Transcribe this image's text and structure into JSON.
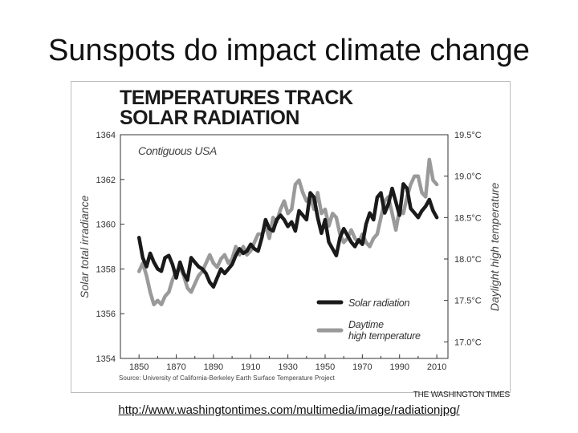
{
  "slide": {
    "title": "Sunspots do impact climate change",
    "url": "http://www.washingtontimes.com/multimedia/image/radiationjpg/",
    "credit": "THE WASHINGTON TIMES"
  },
  "chart_data": {
    "type": "line",
    "title_lines": [
      "TEMPERATURES TRACK",
      "SOLAR RADIATION"
    ],
    "region_label": "Contiguous USA",
    "source": "Source: University of California-Berkeley Earth Surface Temperature Project",
    "ylabel": "Solar total irradiance",
    "y2label": "Daylight high temperature",
    "xlim": [
      1840,
      2016
    ],
    "ylim": [
      1354,
      1364
    ],
    "y2lim": [
      16.8,
      19.5
    ],
    "x_ticks": [
      1850,
      1870,
      1890,
      1910,
      1930,
      1950,
      1970,
      1990,
      2010
    ],
    "y_ticks": [
      1364,
      1362,
      1360,
      1358,
      1356,
      1354
    ],
    "y2_ticks": [
      {
        "value": 19.5,
        "label": "19.5°C"
      },
      {
        "value": 19.0,
        "label": "19.0°C"
      },
      {
        "value": 18.5,
        "label": "18.5°C"
      },
      {
        "value": 18.0,
        "label": "18.0°C"
      },
      {
        "value": 17.5,
        "label": "17.5°C"
      },
      {
        "value": 17.0,
        "label": "17.0°C"
      }
    ],
    "legend": [
      "Solar radiation",
      "Daytime high temperature"
    ],
    "colors": {
      "solar": "#1a1a1a",
      "temperature": "#9a9a9a"
    },
    "series": [
      {
        "name": "Solar radiation",
        "axis": "left",
        "x": [
          1850,
          1852,
          1854,
          1856,
          1858,
          1860,
          1862,
          1864,
          1866,
          1868,
          1870,
          1872,
          1874,
          1876,
          1878,
          1880,
          1882,
          1884,
          1886,
          1888,
          1890,
          1892,
          1894,
          1896,
          1898,
          1900,
          1902,
          1904,
          1906,
          1908,
          1910,
          1912,
          1914,
          1916,
          1918,
          1920,
          1922,
          1924,
          1926,
          1928,
          1930,
          1932,
          1934,
          1936,
          1938,
          1940,
          1942,
          1944,
          1946,
          1948,
          1950,
          1952,
          1954,
          1956,
          1958,
          1960,
          1962,
          1964,
          1966,
          1968,
          1970,
          1972,
          1974,
          1976,
          1978,
          1980,
          1982,
          1984,
          1986,
          1988,
          1990,
          1992,
          1994,
          1996,
          1998,
          2000,
          2002,
          2004,
          2006,
          2008,
          2010
        ],
        "values": [
          1359.4,
          1358.5,
          1358.1,
          1358.7,
          1358.3,
          1358.0,
          1357.9,
          1358.5,
          1358.6,
          1358.2,
          1357.6,
          1358.3,
          1357.8,
          1357.5,
          1358.5,
          1358.3,
          1358.1,
          1358.0,
          1357.8,
          1357.4,
          1357.2,
          1357.6,
          1358.0,
          1357.8,
          1358.0,
          1358.2,
          1358.6,
          1358.9,
          1358.7,
          1358.8,
          1359.1,
          1358.9,
          1358.8,
          1359.4,
          1360.2,
          1359.8,
          1359.7,
          1360.2,
          1360.4,
          1360.2,
          1359.9,
          1360.1,
          1359.7,
          1360.6,
          1360.4,
          1360.2,
          1361.4,
          1361.2,
          1360.3,
          1359.6,
          1360.2,
          1359.2,
          1358.9,
          1358.6,
          1359.4,
          1359.8,
          1359.5,
          1359.2,
          1359.0,
          1359.3,
          1359.1,
          1360.0,
          1360.5,
          1360.2,
          1361.2,
          1361.4,
          1360.5,
          1360.9,
          1361.6,
          1361.0,
          1360.4,
          1361.8,
          1361.6,
          1360.7,
          1360.5,
          1360.3,
          1360.6,
          1360.8,
          1361.1,
          1360.6,
          1360.3
        ]
      },
      {
        "name": "Daytime high temperature",
        "axis": "right",
        "x": [
          1850,
          1852,
          1854,
          1856,
          1858,
          1860,
          1862,
          1864,
          1866,
          1868,
          1870,
          1872,
          1874,
          1876,
          1878,
          1880,
          1882,
          1884,
          1886,
          1888,
          1890,
          1892,
          1894,
          1896,
          1898,
          1900,
          1902,
          1904,
          1906,
          1908,
          1910,
          1912,
          1914,
          1916,
          1918,
          1920,
          1922,
          1924,
          1926,
          1928,
          1930,
          1932,
          1934,
          1936,
          1938,
          1940,
          1942,
          1944,
          1946,
          1948,
          1950,
          1952,
          1954,
          1956,
          1958,
          1960,
          1962,
          1964,
          1966,
          1968,
          1970,
          1972,
          1974,
          1976,
          1978,
          1980,
          1982,
          1984,
          1986,
          1988,
          1990,
          1992,
          1994,
          1996,
          1998,
          2000,
          2002,
          2004,
          2006,
          2008,
          2010
        ],
        "values": [
          17.85,
          17.95,
          17.8,
          17.6,
          17.45,
          17.5,
          17.45,
          17.55,
          17.6,
          17.75,
          17.85,
          17.9,
          17.8,
          17.65,
          17.6,
          17.7,
          17.8,
          17.85,
          17.95,
          18.05,
          17.95,
          17.9,
          18.0,
          18.05,
          17.95,
          18.0,
          18.15,
          18.05,
          18.15,
          18.05,
          18.1,
          18.2,
          18.3,
          18.3,
          18.4,
          18.25,
          18.5,
          18.45,
          18.6,
          18.7,
          18.55,
          18.6,
          18.9,
          18.95,
          18.8,
          18.7,
          18.75,
          18.6,
          18.8,
          18.55,
          18.6,
          18.4,
          18.55,
          18.5,
          18.3,
          18.2,
          18.25,
          18.35,
          18.25,
          18.2,
          18.3,
          18.2,
          18.15,
          18.25,
          18.3,
          18.5,
          18.7,
          18.75,
          18.55,
          18.35,
          18.6,
          18.55,
          18.75,
          18.9,
          19.0,
          19.0,
          18.8,
          18.75,
          19.2,
          18.95,
          18.9
        ]
      }
    ]
  }
}
